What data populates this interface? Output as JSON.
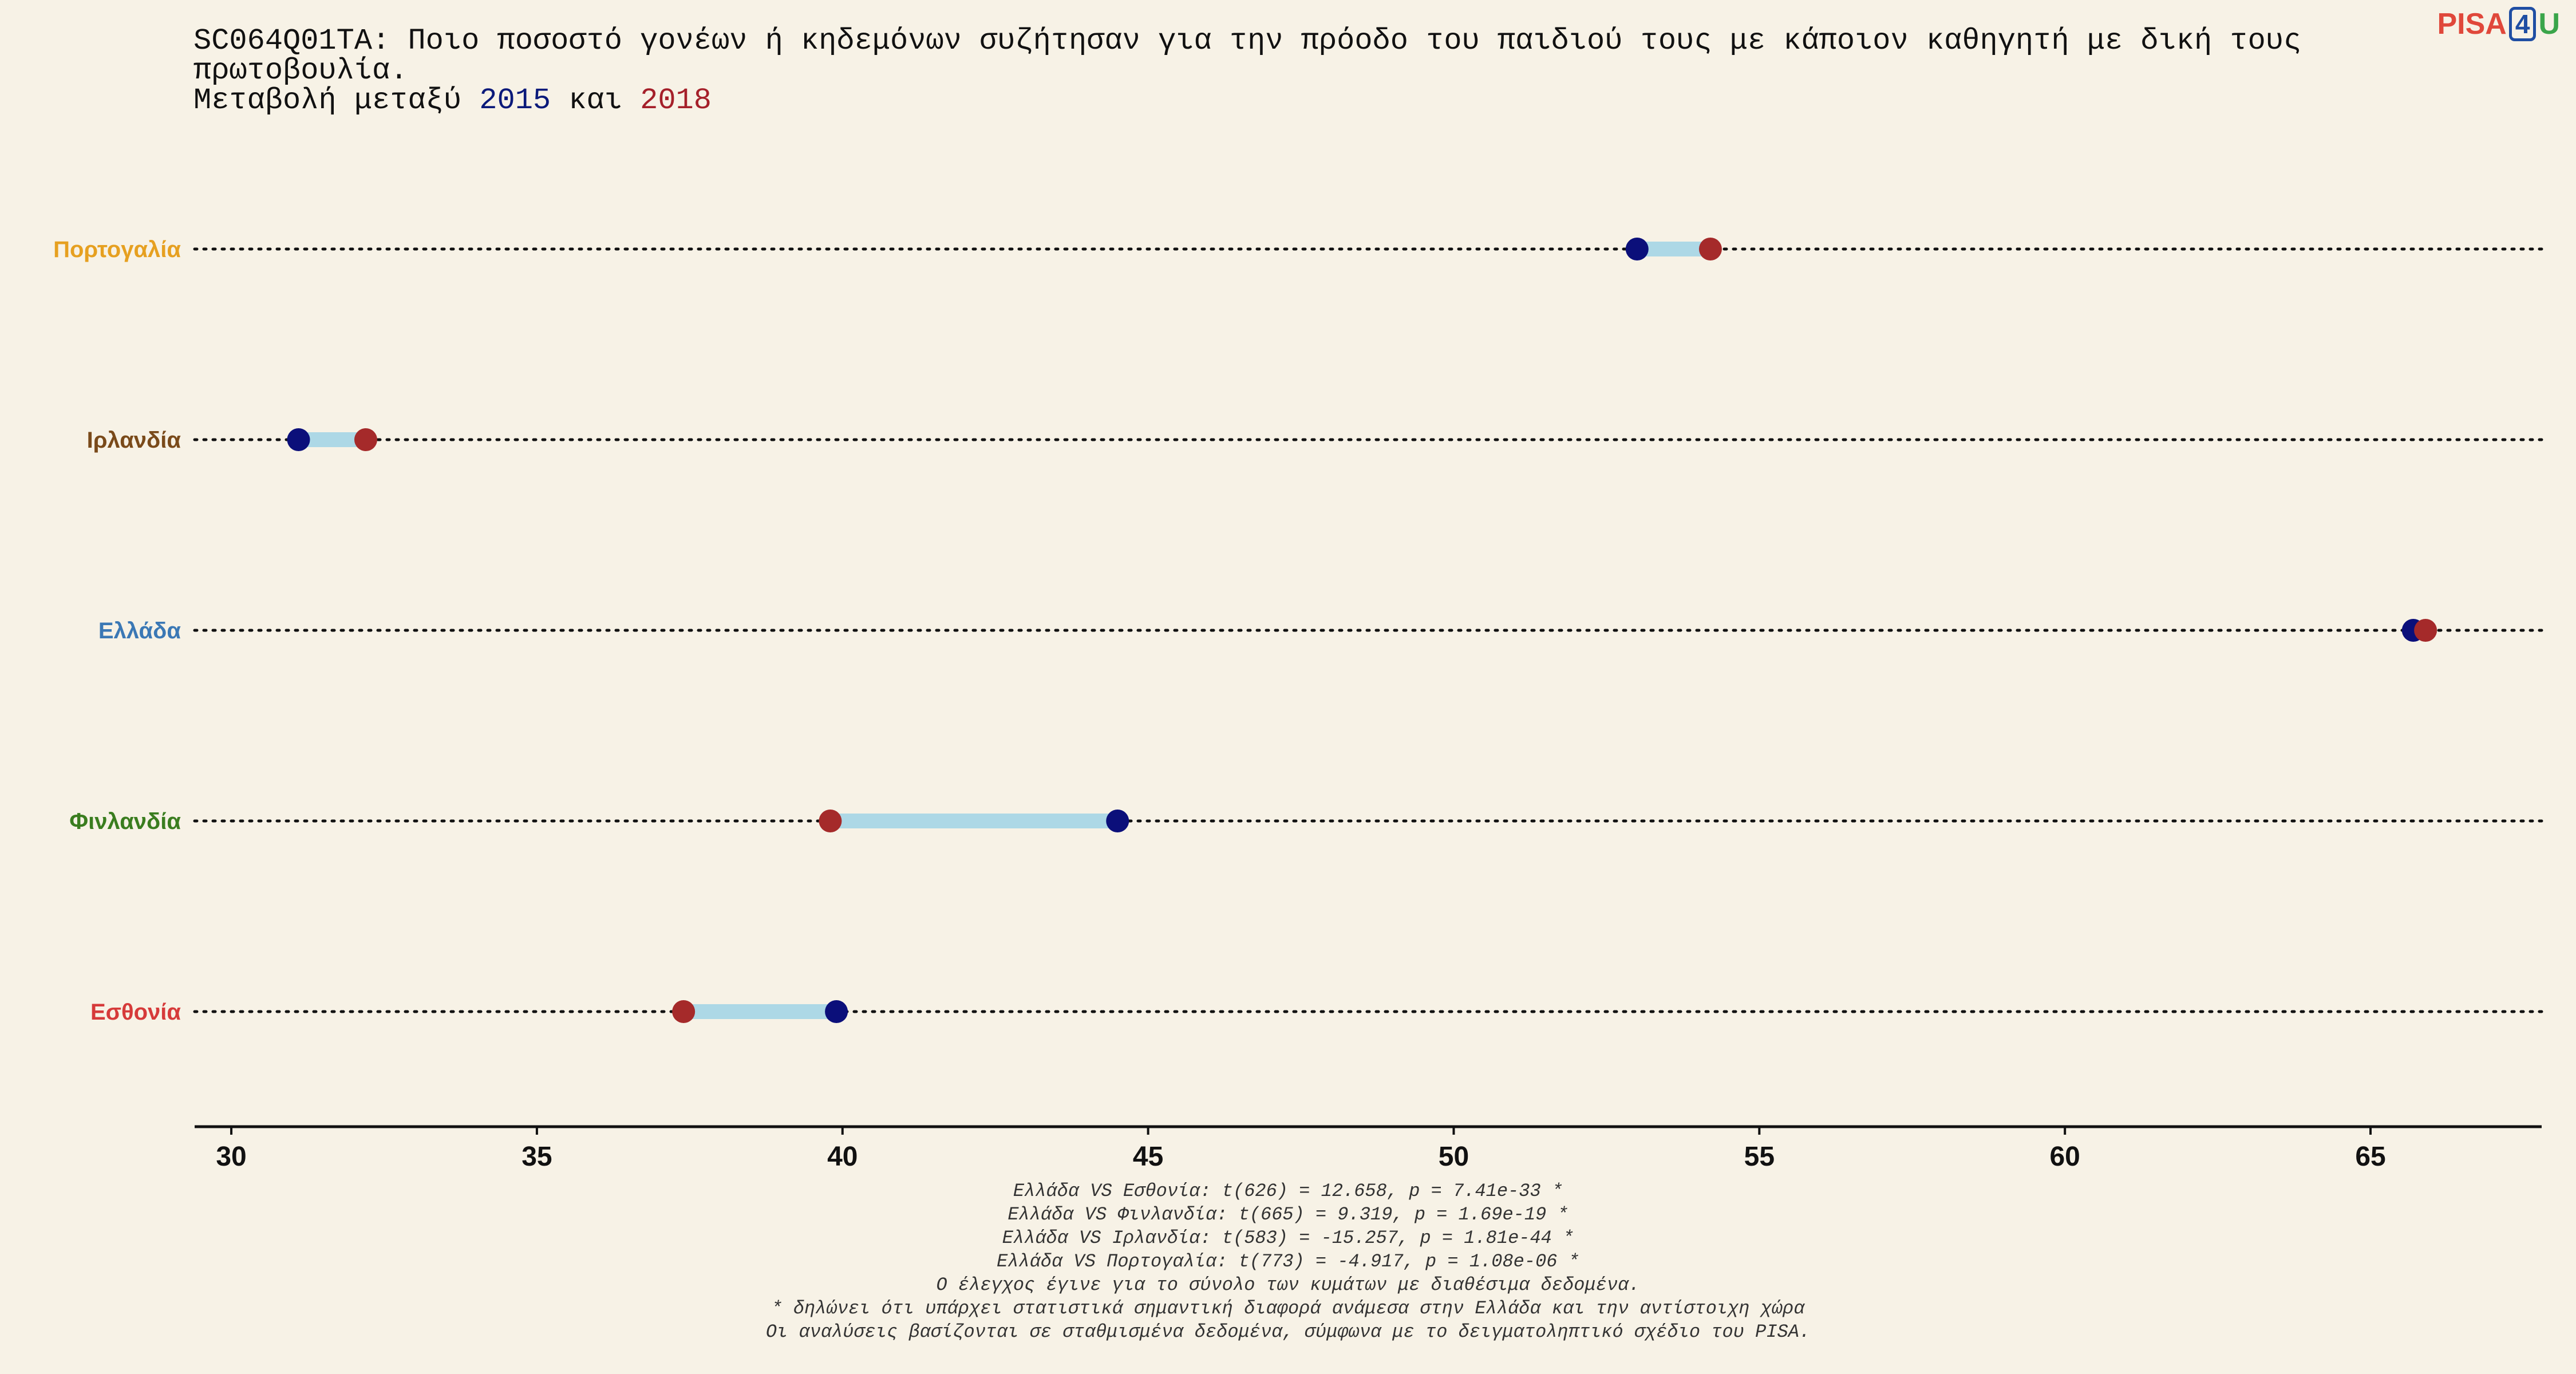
{
  "header": {
    "title_line1": "SC064Q01TA: Ποιο ποσοστό γονέων ή κηδεμόνων συζήτησαν για την πρόοδο του παιδιού τους με κάποιον καθηγητή με δική τους πρωτοβουλία.",
    "title_prefix": "Μεταβολή μεταξύ ",
    "year_a": "2015",
    "title_mid": " και ",
    "year_b": "2018"
  },
  "logo": {
    "part1": "PISA",
    "part2": "4",
    "part3": "U"
  },
  "colors": {
    "year_2015": "#0b0f7a",
    "year_2018": "#a52a2a",
    "connector": "#add8e6",
    "Πορτογαλία": "#e6a020",
    "Ιρλανδία": "#7a4a1a",
    "Ελλάδα": "#3b78b5",
    "Φινλανδία": "#3a7d1f",
    "Εσθονία": "#d63a3a"
  },
  "chart_data": {
    "type": "dumbbell",
    "xlim": [
      29.4,
      67.8
    ],
    "x_ticks": [
      30,
      35,
      40,
      45,
      50,
      55,
      60,
      65
    ],
    "grid": "dotted horizontal guides per country",
    "series": [
      {
        "name": "2015",
        "color": "#0b0f7a"
      },
      {
        "name": "2018",
        "color": "#a52a2a"
      }
    ],
    "countries": [
      {
        "name": "Πορτογαλία",
        "v2015": 53.0,
        "v2018": 54.2
      },
      {
        "name": "Ιρλανδία",
        "v2015": 31.1,
        "v2018": 32.2
      },
      {
        "name": "Ελλάδα",
        "v2015": 65.7,
        "v2018": 65.9
      },
      {
        "name": "Φινλανδία",
        "v2015": 44.5,
        "v2018": 39.8
      },
      {
        "name": "Εσθονία",
        "v2015": 39.9,
        "v2018": 37.4
      }
    ]
  },
  "footnotes": [
    "Ελλάδα VS Εσθονία: t(626) = 12.658, p = 7.41e-33 *",
    "Ελλάδα VS Φινλανδία: t(665) = 9.319, p = 1.69e-19 *",
    "Ελλάδα VS Ιρλανδία: t(583) = -15.257, p = 1.81e-44 *",
    "Ελλάδα VS Πορτογαλία: t(773) = -4.917, p = 1.08e-06 *",
    "Ο έλεγχος έγινε για το σύνολο των κυμάτων με διαθέσιμα δεδομένα.",
    "* δηλώνει ότι υπάρχει στατιστικά σημαντική διαφορά ανάμεσα στην Ελλάδα και την αντίστοιχη χώρα",
    "Οι αναλύσεις βασίζονται σε σταθμισμένα δεδομένα, σύμφωνα με το δειγματοληπτικό σχέδιο του PISA."
  ]
}
